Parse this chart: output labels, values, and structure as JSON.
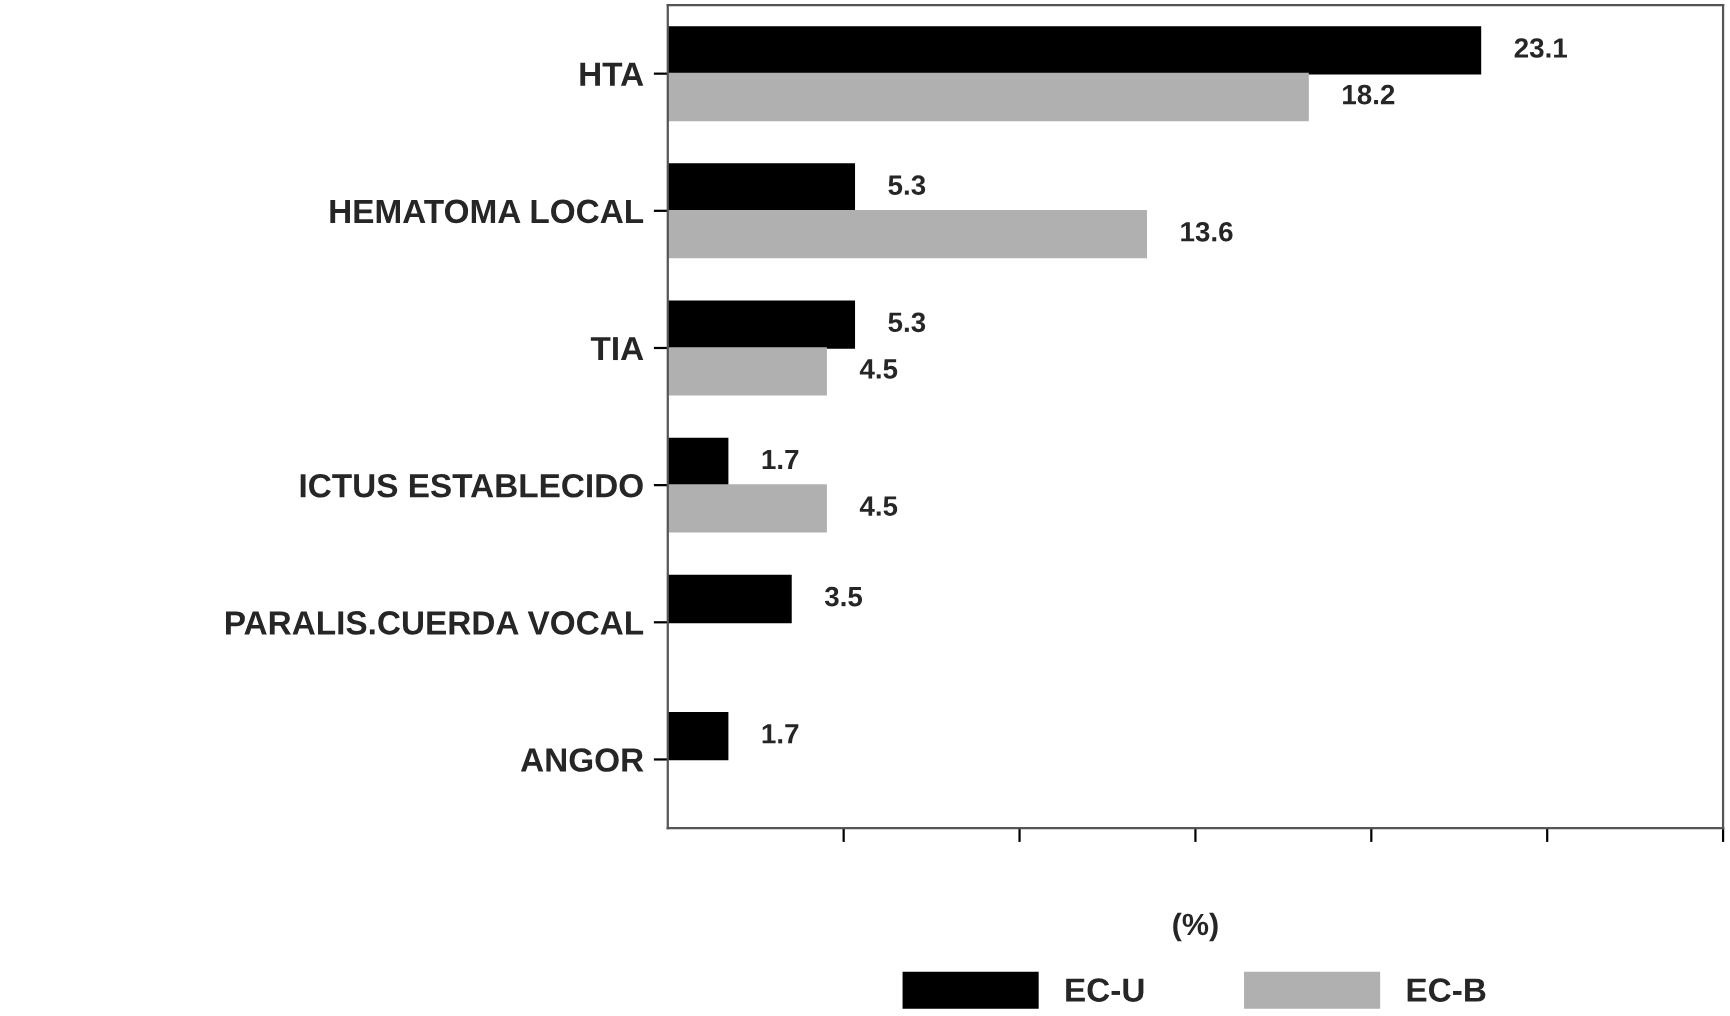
{
  "chart_data": {
    "type": "bar",
    "orientation": "horizontal",
    "xlabel": "(%)",
    "categories": [
      "HTA",
      "HEMATOMA LOCAL",
      "TIA",
      "ICTUS ESTABLECIDO",
      "PARALIS.CUERDA VOCAL",
      "ANGOR"
    ],
    "series": [
      {
        "name": "EC-U",
        "color": "#000000",
        "values": [
          23.1,
          5.3,
          5.3,
          1.7,
          3.5,
          1.7
        ]
      },
      {
        "name": "EC-B",
        "color": "#b0b0b0",
        "values": [
          18.2,
          13.6,
          4.5,
          4.5,
          null,
          null
        ]
      }
    ],
    "xlim": [
      0,
      30
    ],
    "xticks": [
      {
        "value": 5,
        "label": null
      },
      {
        "value": 10,
        "label": null
      },
      {
        "value": 15,
        "label": null
      },
      {
        "value": 20,
        "label": null
      },
      {
        "value": 25,
        "label": null
      },
      {
        "value": 30,
        "label": null
      }
    ],
    "data_labels": true,
    "legend": "bottom",
    "grid": false
  }
}
